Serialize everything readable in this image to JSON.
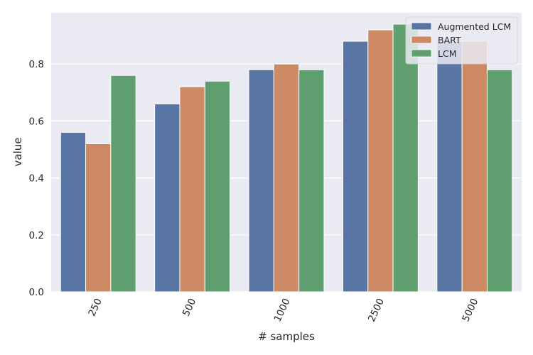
{
  "chart_data": {
    "type": "bar",
    "categories": [
      "250",
      "500",
      "1000",
      "2500",
      "5000"
    ],
    "series": [
      {
        "name": "Augmented LCM",
        "color": "#5875a4",
        "values": [
          0.56,
          0.66,
          0.78,
          0.88,
          0.88
        ]
      },
      {
        "name": "BART",
        "color": "#cc8963",
        "values": [
          0.52,
          0.72,
          0.8,
          0.92,
          0.88
        ]
      },
      {
        "name": "LCM",
        "color": "#5f9e6e",
        "values": [
          0.76,
          0.74,
          0.78,
          0.94,
          0.78
        ]
      }
    ],
    "xlabel": "# samples",
    "ylabel": "value",
    "ylim": [
      0,
      0.98
    ],
    "yticks": [
      "0.0",
      "0.2",
      "0.4",
      "0.6",
      "0.8"
    ],
    "grid": true,
    "background": "#eaeaf2",
    "legend_position": "top-right"
  }
}
